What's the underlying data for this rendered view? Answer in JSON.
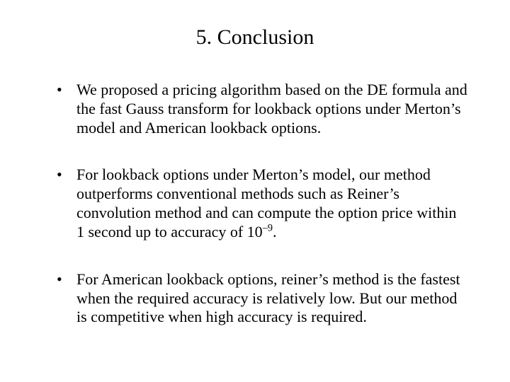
{
  "slide": {
    "title": "5. Conclusion",
    "title_fontsize": 30,
    "body_fontsize": 22,
    "font_family": "Times New Roman",
    "text_color": "#000000",
    "background_color": "#ffffff",
    "bullets": [
      {
        "text": "We proposed a pricing algorithm based on the DE formula and the fast Gauss transform for lookback options under Merton’s model and American lookback options."
      },
      {
        "prefix": "For lookback options under Merton’s model, our method outperforms conventional methods such as Reiner’s convolution method and can compute the option price within 1 second up to accuracy of 10",
        "superscript": "–9",
        "suffix": "."
      },
      {
        "text": "For American lookback options, reiner’s method is the fastest when the required accuracy is relatively low. But our method is competitive when high accuracy is required."
      }
    ]
  }
}
